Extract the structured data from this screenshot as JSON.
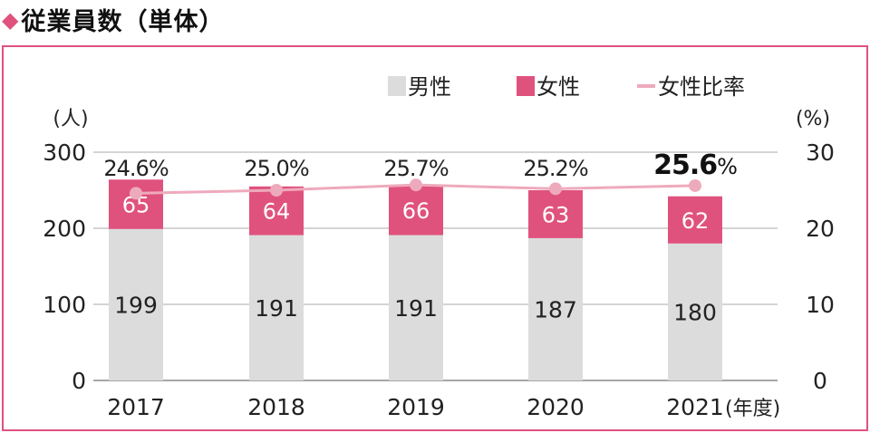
{
  "title": "従業員数（単体）",
  "title_marker": "◆",
  "chart_data": {
    "type": "bar",
    "stacked": true,
    "categories": [
      "2017",
      "2018",
      "2019",
      "2020",
      "2021"
    ],
    "x_unit": "(年度)",
    "left_axis": {
      "label": "(人)",
      "ylim": [
        0,
        300
      ],
      "ticks": [
        0,
        100,
        200,
        300
      ]
    },
    "right_axis": {
      "label": "(%)",
      "ylim": [
        0,
        30
      ],
      "ticks": [
        0,
        10,
        20,
        30
      ]
    },
    "series": [
      {
        "name": "男性",
        "type": "bar",
        "color": "#dcdcdc",
        "values": [
          199,
          191,
          191,
          187,
          180
        ]
      },
      {
        "name": "女性",
        "type": "bar",
        "color": "#e0527e",
        "values": [
          65,
          64,
          66,
          63,
          62
        ]
      },
      {
        "name": "女性比率",
        "type": "line",
        "color": "#eeaabd",
        "axis": "right",
        "values": [
          24.6,
          25.0,
          25.7,
          25.2,
          25.6
        ],
        "labels": [
          "24.6%",
          "25.0%",
          "25.7%",
          "25.2%",
          "25.6"
        ],
        "last_label_suffix": "%"
      }
    ],
    "legend": "top-right",
    "grid": true
  }
}
